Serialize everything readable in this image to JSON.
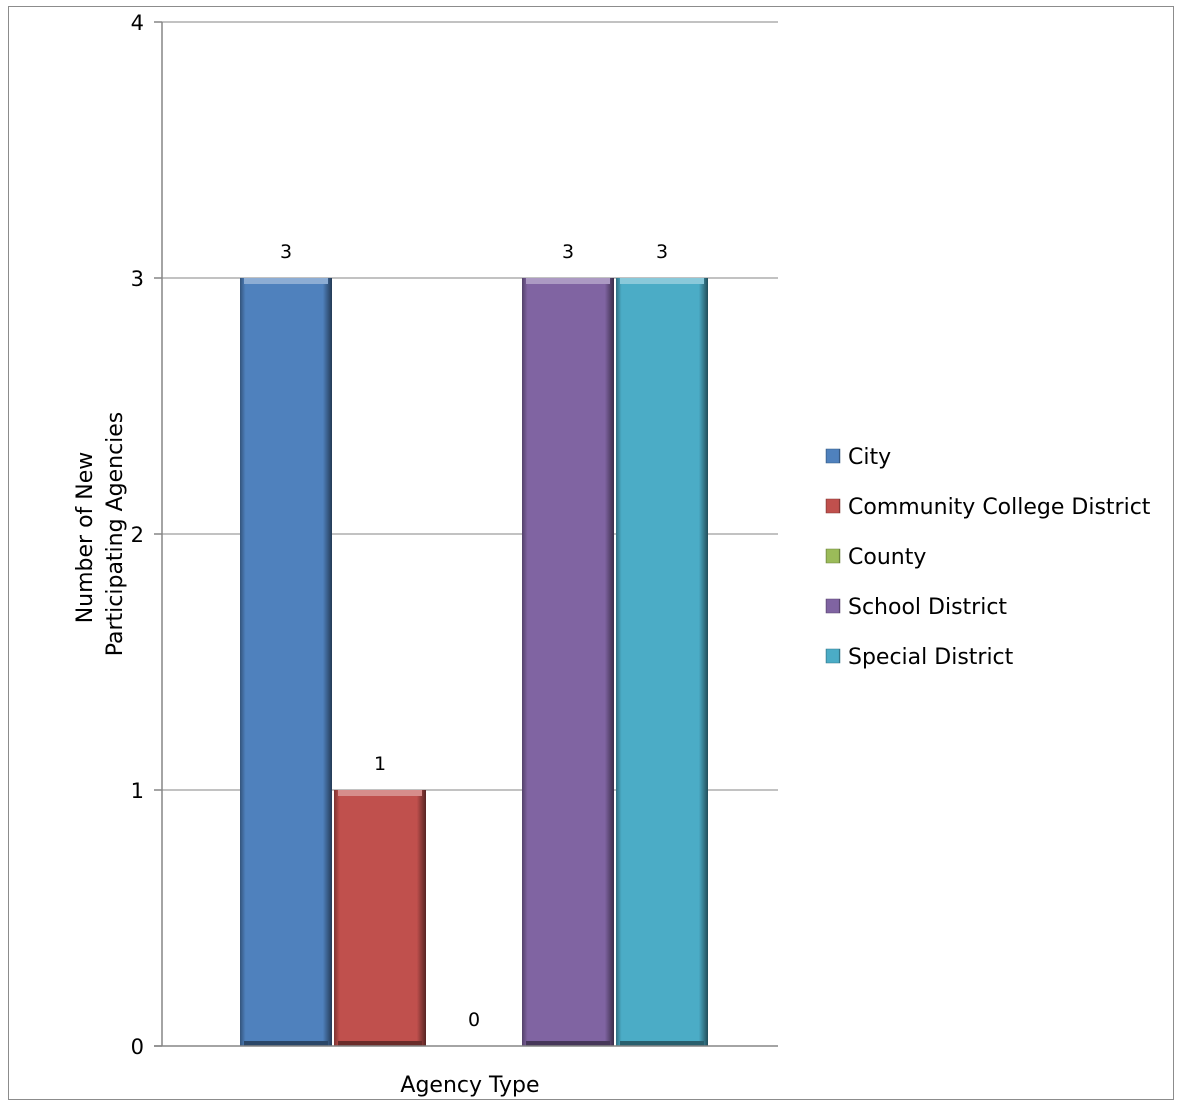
{
  "chart_data": {
    "type": "bar",
    "title": "",
    "xlabel": "Agency Type",
    "ylabel_lines": [
      "Number of New",
      "Participating Agencies"
    ],
    "ylim": [
      0,
      4
    ],
    "yticks": [
      0,
      1,
      2,
      3,
      4
    ],
    "grid": true,
    "legend_position": "right",
    "series": [
      {
        "name": "City",
        "value": 3,
        "color": "#4f81bd"
      },
      {
        "name": "Community College District",
        "value": 1,
        "color": "#c0504d"
      },
      {
        "name": "County",
        "value": 0,
        "color": "#9bbb59"
      },
      {
        "name": "School District",
        "value": 3,
        "color": "#8064a2"
      },
      {
        "name": "Special District",
        "value": 3,
        "color": "#4bacc6"
      }
    ]
  }
}
